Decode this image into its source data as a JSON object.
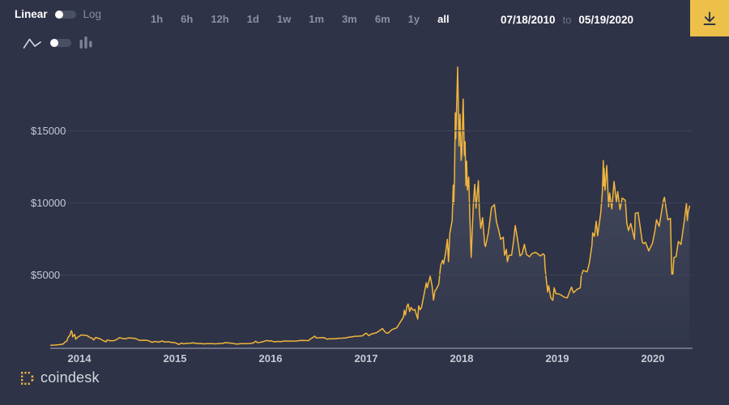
{
  "toolbar": {
    "scale": {
      "linear_label": "Linear",
      "log_label": "Log",
      "active": "Linear"
    },
    "chart_type": {
      "options": [
        "line",
        "bars"
      ],
      "active": "line"
    },
    "ranges": [
      "1h",
      "6h",
      "12h",
      "1d",
      "1w",
      "1m",
      "3m",
      "6m",
      "1y",
      "all"
    ],
    "active_range": "all",
    "date_range": {
      "start": "07/18/2010",
      "separator": "to",
      "end": "05/19/2020"
    },
    "download_icon": "download-icon"
  },
  "footer": {
    "brand": "coindesk"
  },
  "colors": {
    "background": "#2e3347",
    "accent_yellow": "#edc04a",
    "line_gold": "#f1b53c",
    "gridline": "#3d4257",
    "axis_line": "#757b91",
    "axis_label": "#c7cad5",
    "inactive_text": "#8a8fa2",
    "active_text": "#ffffff"
  },
  "chart_data": {
    "type": "line",
    "title": "",
    "xlabel": "",
    "ylabel": "",
    "legend": "none",
    "grid": "horizontal",
    "x_axis": {
      "labels": [
        "2014",
        "2015",
        "2016",
        "2017",
        "2018",
        "2019",
        "2020"
      ],
      "values": [
        2014,
        2015,
        2016,
        2017,
        2018,
        2019,
        2020
      ]
    },
    "y_axis": {
      "labels": [
        "$5000",
        "$10000",
        "$15000"
      ],
      "values": [
        5000,
        10000,
        15000
      ]
    },
    "xlim": [
      2013.695,
      2020.415
    ],
    "ylim": [
      0,
      20900
    ],
    "series": [
      {
        "name": "price-usd",
        "points": [
          [
            2013.7,
            128
          ],
          [
            2013.74,
            138
          ],
          [
            2013.78,
            162
          ],
          [
            2013.81,
            192
          ],
          [
            2013.83,
            208
          ],
          [
            2013.85,
            340
          ],
          [
            2013.87,
            432
          ],
          [
            2013.88,
            650
          ],
          [
            2013.9,
            810
          ],
          [
            2013.915,
            1130
          ],
          [
            2013.925,
            1010
          ],
          [
            2013.93,
            705
          ],
          [
            2013.95,
            880
          ],
          [
            2013.962,
            545
          ],
          [
            2013.98,
            672
          ],
          [
            2014.0,
            758
          ],
          [
            2014.02,
            842
          ],
          [
            2014.05,
            818
          ],
          [
            2014.08,
            800
          ],
          [
            2014.11,
            665
          ],
          [
            2014.13,
            625
          ],
          [
            2014.15,
            492
          ],
          [
            2014.17,
            665
          ],
          [
            2014.22,
            560
          ],
          [
            2014.25,
            445
          ],
          [
            2014.28,
            362
          ],
          [
            2014.29,
            495
          ],
          [
            2014.32,
            445
          ],
          [
            2014.36,
            442
          ],
          [
            2014.39,
            520
          ],
          [
            2014.42,
            655
          ],
          [
            2014.45,
            600
          ],
          [
            2014.48,
            566
          ],
          [
            2014.51,
            630
          ],
          [
            2014.55,
            620
          ],
          [
            2014.59,
            586
          ],
          [
            2014.63,
            466
          ],
          [
            2014.67,
            478
          ],
          [
            2014.71,
            462
          ],
          [
            2014.74,
            400
          ],
          [
            2014.76,
            333
          ],
          [
            2014.79,
            392
          ],
          [
            2014.83,
            340
          ],
          [
            2014.87,
            428
          ],
          [
            2014.89,
            352
          ],
          [
            2014.94,
            368
          ],
          [
            2014.96,
            318
          ],
          [
            2014.99,
            320
          ],
          [
            2015.01,
            272
          ],
          [
            2015.04,
            182
          ],
          [
            2015.07,
            288
          ],
          [
            2015.09,
            224
          ],
          [
            2015.12,
            256
          ],
          [
            2015.16,
            262
          ],
          [
            2015.19,
            292
          ],
          [
            2015.23,
            246
          ],
          [
            2015.27,
            244
          ],
          [
            2015.3,
            226
          ],
          [
            2015.34,
            236
          ],
          [
            2015.38,
            234
          ],
          [
            2015.43,
            226
          ],
          [
            2015.45,
            237
          ],
          [
            2015.5,
            260
          ],
          [
            2015.53,
            308
          ],
          [
            2015.56,
            288
          ],
          [
            2015.6,
            262
          ],
          [
            2015.63,
            226
          ],
          [
            2015.65,
            214
          ],
          [
            2015.69,
            240
          ],
          [
            2015.73,
            236
          ],
          [
            2015.78,
            246
          ],
          [
            2015.82,
            286
          ],
          [
            2015.83,
            322
          ],
          [
            2015.845,
            408
          ],
          [
            2015.86,
            316
          ],
          [
            2015.89,
            326
          ],
          [
            2015.93,
            390
          ],
          [
            2015.95,
            434
          ],
          [
            2015.965,
            458
          ],
          [
            2015.98,
            416
          ],
          [
            2016.0,
            434
          ],
          [
            2016.04,
            366
          ],
          [
            2016.07,
            390
          ],
          [
            2016.11,
            382
          ],
          [
            2016.15,
            424
          ],
          [
            2016.19,
            414
          ],
          [
            2016.23,
            416
          ],
          [
            2016.27,
            422
          ],
          [
            2016.32,
            460
          ],
          [
            2016.36,
            452
          ],
          [
            2016.4,
            450
          ],
          [
            2016.41,
            532
          ],
          [
            2016.45,
            700
          ],
          [
            2016.46,
            762
          ],
          [
            2016.48,
            625
          ],
          [
            2016.49,
            640
          ],
          [
            2016.52,
            650
          ],
          [
            2016.56,
            655
          ],
          [
            2016.59,
            546
          ],
          [
            2016.62,
            572
          ],
          [
            2016.67,
            575
          ],
          [
            2016.71,
            608
          ],
          [
            2016.75,
            614
          ],
          [
            2016.79,
            640
          ],
          [
            2016.82,
            690
          ],
          [
            2016.85,
            706
          ],
          [
            2016.88,
            745
          ],
          [
            2016.92,
            756
          ],
          [
            2016.96,
            780
          ],
          [
            2016.98,
            875
          ],
          [
            2017.0,
            965
          ],
          [
            2017.03,
            790
          ],
          [
            2017.05,
            890
          ],
          [
            2017.11,
            1000
          ],
          [
            2017.15,
            1180
          ],
          [
            2017.17,
            1280
          ],
          [
            2017.19,
            1110
          ],
          [
            2017.21,
            972
          ],
          [
            2017.23,
            966
          ],
          [
            2017.27,
            1210
          ],
          [
            2017.32,
            1330
          ],
          [
            2017.36,
            1760
          ],
          [
            2017.39,
            2050
          ],
          [
            2017.4,
            2550
          ],
          [
            2017.41,
            2210
          ],
          [
            2017.43,
            2870
          ],
          [
            2017.44,
            2980
          ],
          [
            2017.455,
            2460
          ],
          [
            2017.47,
            2750
          ],
          [
            2017.49,
            2550
          ],
          [
            2017.51,
            2600
          ],
          [
            2017.54,
            1935
          ],
          [
            2017.55,
            2850
          ],
          [
            2017.565,
            2580
          ],
          [
            2017.58,
            2750
          ],
          [
            2017.6,
            3430
          ],
          [
            2017.63,
            4450
          ],
          [
            2017.64,
            4100
          ],
          [
            2017.67,
            4900
          ],
          [
            2017.69,
            4250
          ],
          [
            2017.705,
            3250
          ],
          [
            2017.72,
            3900
          ],
          [
            2017.73,
            3950
          ],
          [
            2017.76,
            4350
          ],
          [
            2017.78,
            5650
          ],
          [
            2017.8,
            6000
          ],
          [
            2017.81,
            5750
          ],
          [
            2017.83,
            6450
          ],
          [
            2017.85,
            7450
          ],
          [
            2017.862,
            5900
          ],
          [
            2017.875,
            7850
          ],
          [
            2017.9,
            8750
          ],
          [
            2017.912,
            11200
          ],
          [
            2017.917,
            9900
          ],
          [
            2017.925,
            11650
          ],
          [
            2017.933,
            16200
          ],
          [
            2017.938,
            14400
          ],
          [
            2017.947,
            16500
          ],
          [
            2017.958,
            19350
          ],
          [
            2017.972,
            13900
          ],
          [
            2017.983,
            16100
          ],
          [
            2017.994,
            12900
          ],
          [
            2018.001,
            13400
          ],
          [
            2018.015,
            17150
          ],
          [
            2018.028,
            13250
          ],
          [
            2018.036,
            14200
          ],
          [
            2018.044,
            11150
          ],
          [
            2018.052,
            12850
          ],
          [
            2018.06,
            10850
          ],
          [
            2018.074,
            11750
          ],
          [
            2018.085,
            9050
          ],
          [
            2018.099,
            6200
          ],
          [
            2018.123,
            10050
          ],
          [
            2018.137,
            11250
          ],
          [
            2018.15,
            9600
          ],
          [
            2018.175,
            11500
          ],
          [
            2018.186,
            9300
          ],
          [
            2018.2,
            8200
          ],
          [
            2018.219,
            8950
          ],
          [
            2018.241,
            7100
          ],
          [
            2018.249,
            6950
          ],
          [
            2018.279,
            7900
          ],
          [
            2018.312,
            9650
          ],
          [
            2018.342,
            9850
          ],
          [
            2018.364,
            8650
          ],
          [
            2018.388,
            8050
          ],
          [
            2018.407,
            7450
          ],
          [
            2018.435,
            7600
          ],
          [
            2018.448,
            6350
          ],
          [
            2018.467,
            6750
          ],
          [
            2018.478,
            5900
          ],
          [
            2018.495,
            6350
          ],
          [
            2018.522,
            6350
          ],
          [
            2018.544,
            7400
          ],
          [
            2018.56,
            8400
          ],
          [
            2018.582,
            7550
          ],
          [
            2018.61,
            6300
          ],
          [
            2018.632,
            6450
          ],
          [
            2018.656,
            7100
          ],
          [
            2018.678,
            6400
          ],
          [
            2018.71,
            6250
          ],
          [
            2018.732,
            6450
          ],
          [
            2018.773,
            6550
          ],
          [
            2018.825,
            6300
          ],
          [
            2018.85,
            6450
          ],
          [
            2018.866,
            6350
          ],
          [
            2018.871,
            5600
          ],
          [
            2018.882,
            4850
          ],
          [
            2018.899,
            3800
          ],
          [
            2018.91,
            4250
          ],
          [
            2018.932,
            3400
          ],
          [
            2018.953,
            3230
          ],
          [
            2018.967,
            4100
          ],
          [
            2018.986,
            3700
          ],
          [
            2019.025,
            3650
          ],
          [
            2019.074,
            3450
          ],
          [
            2019.104,
            3400
          ],
          [
            2019.148,
            4150
          ],
          [
            2019.17,
            3750
          ],
          [
            2019.203,
            3980
          ],
          [
            2019.241,
            4100
          ],
          [
            2019.252,
            4950
          ],
          [
            2019.271,
            5300
          ],
          [
            2019.312,
            5200
          ],
          [
            2019.334,
            5750
          ],
          [
            2019.362,
            7000
          ],
          [
            2019.37,
            7900
          ],
          [
            2019.389,
            7650
          ],
          [
            2019.408,
            8700
          ],
          [
            2019.422,
            7700
          ],
          [
            2019.455,
            9300
          ],
          [
            2019.471,
            10700
          ],
          [
            2019.482,
            12900
          ],
          [
            2019.486,
            11150
          ],
          [
            2019.49,
            12350
          ],
          [
            2019.499,
            10850
          ],
          [
            2019.518,
            12550
          ],
          [
            2019.537,
            9700
          ],
          [
            2019.548,
            10650
          ],
          [
            2019.57,
            9550
          ],
          [
            2019.594,
            11450
          ],
          [
            2019.619,
            10050
          ],
          [
            2019.632,
            10750
          ],
          [
            2019.657,
            9500
          ],
          [
            2019.679,
            10300
          ],
          [
            2019.712,
            10150
          ],
          [
            2019.728,
            8550
          ],
          [
            2019.745,
            8050
          ],
          [
            2019.769,
            8550
          ],
          [
            2019.808,
            7450
          ],
          [
            2019.816,
            9250
          ],
          [
            2019.846,
            9300
          ],
          [
            2019.89,
            7250
          ],
          [
            2019.903,
            7150
          ],
          [
            2019.923,
            7250
          ],
          [
            2019.958,
            6650
          ],
          [
            2019.997,
            7200
          ],
          [
            2020.022,
            8050
          ],
          [
            2020.038,
            8800
          ],
          [
            2020.066,
            8350
          ],
          [
            2020.11,
            10150
          ],
          [
            2020.121,
            10350
          ],
          [
            2020.157,
            8800
          ],
          [
            2020.184,
            8900
          ],
          [
            2020.198,
            5000
          ],
          [
            2020.209,
            5050
          ],
          [
            2020.22,
            6200
          ],
          [
            2020.242,
            6250
          ],
          [
            2020.267,
            7300
          ],
          [
            2020.294,
            7100
          ],
          [
            2020.33,
            8750
          ],
          [
            2020.352,
            9950
          ],
          [
            2020.36,
            8750
          ],
          [
            2020.368,
            9300
          ],
          [
            2020.382,
            9700
          ],
          [
            2020.384,
            9750
          ]
        ]
      }
    ]
  }
}
